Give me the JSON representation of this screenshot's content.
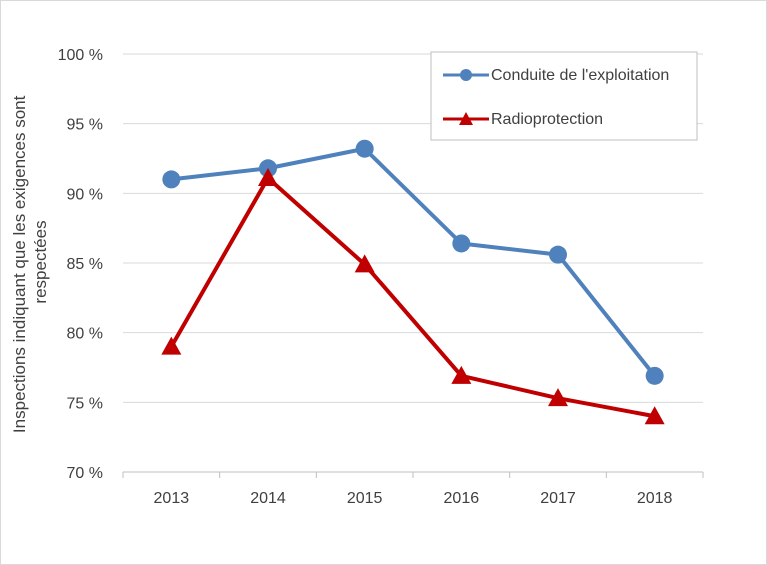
{
  "chart_data": {
    "type": "line",
    "title": "",
    "xlabel": "",
    "ylabel_lines": [
      "Inspections indiquant que les exigences sont",
      "respectées"
    ],
    "categories": [
      "2013",
      "2014",
      "2015",
      "2016",
      "2017",
      "2018"
    ],
    "ylim": [
      70,
      100
    ],
    "yticks": [
      70,
      75,
      80,
      85,
      90,
      95,
      100
    ],
    "ytick_labels": [
      "70 %",
      "75 %",
      "80 %",
      "85 %",
      "90 %",
      "95 %",
      "100 %"
    ],
    "grid": true,
    "legend_position": "top-right",
    "series": [
      {
        "name": "Conduite de l'exploitation",
        "values": [
          91.0,
          91.8,
          93.2,
          86.4,
          85.6,
          76.9
        ],
        "color": "#4f81bd",
        "marker": "circle"
      },
      {
        "name": "Radioprotection",
        "values": [
          79.0,
          91.1,
          84.9,
          76.9,
          75.3,
          74.0
        ],
        "color": "#c00000",
        "marker": "triangle"
      }
    ]
  }
}
